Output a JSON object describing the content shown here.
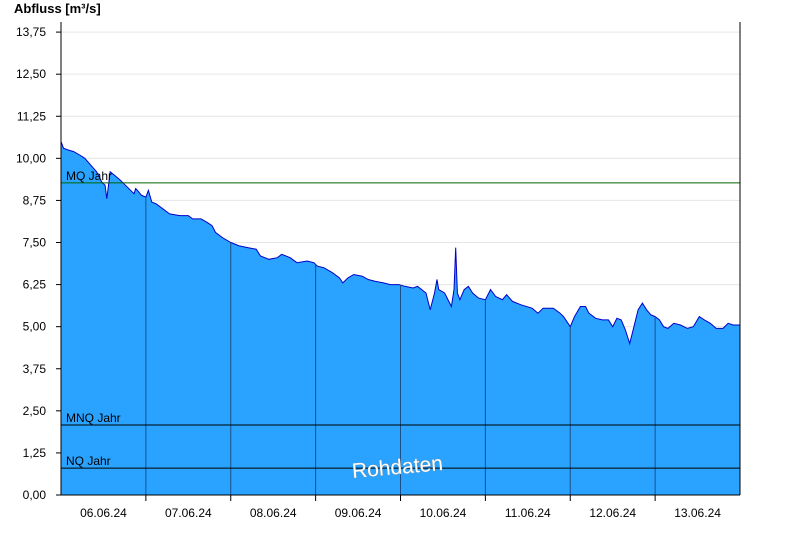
{
  "chart_data": {
    "type": "area",
    "ylabel": "Abfluss [m³/s]",
    "ylim": [
      0,
      14.05
    ],
    "xlim": [
      0,
      8
    ],
    "yticks": [
      {
        "value": 0,
        "label": "0,00"
      },
      {
        "value": 1.25,
        "label": "1,25"
      },
      {
        "value": 2.5,
        "label": "2,50"
      },
      {
        "value": 3.75,
        "label": "3,75"
      },
      {
        "value": 5.0,
        "label": "5,00"
      },
      {
        "value": 6.25,
        "label": "6,25"
      },
      {
        "value": 7.5,
        "label": "7,50"
      },
      {
        "value": 8.75,
        "label": "8,75"
      },
      {
        "value": 10.0,
        "label": "10,00"
      },
      {
        "value": 11.25,
        "label": "11,25"
      },
      {
        "value": 12.5,
        "label": "12,50"
      },
      {
        "value": 13.75,
        "label": "13,75"
      }
    ],
    "day_boundaries": [
      1,
      2,
      3,
      4,
      5,
      6,
      7
    ],
    "xticks": [
      {
        "x": 0.5,
        "label": "06.06.24"
      },
      {
        "x": 1.5,
        "label": "07.06.24"
      },
      {
        "x": 2.5,
        "label": "08.06.24"
      },
      {
        "x": 3.5,
        "label": "09.06.24"
      },
      {
        "x": 4.5,
        "label": "10.06.24"
      },
      {
        "x": 5.5,
        "label": "11.06.24"
      },
      {
        "x": 6.5,
        "label": "12.06.24"
      },
      {
        "x": 7.5,
        "label": "13.06.24"
      }
    ],
    "reference_lines": [
      {
        "name": "MQ Jahr",
        "value": 9.27,
        "color": "#006400"
      },
      {
        "name": "MNQ Jahr",
        "value": 2.08,
        "color": "#000000"
      },
      {
        "name": "NQ Jahr",
        "value": 0.8,
        "color": "#000000"
      }
    ],
    "series": [
      {
        "color_fill": "#29a3ff",
        "color_line": "#0000c8",
        "points": [
          [
            0.0,
            10.5
          ],
          [
            0.03,
            10.3
          ],
          [
            0.08,
            10.25
          ],
          [
            0.15,
            10.2
          ],
          [
            0.22,
            10.1
          ],
          [
            0.28,
            10.0
          ],
          [
            0.35,
            9.8
          ],
          [
            0.42,
            9.6
          ],
          [
            0.48,
            9.3
          ],
          [
            0.52,
            9.2
          ],
          [
            0.54,
            8.8
          ],
          [
            0.56,
            9.2
          ],
          [
            0.58,
            9.6
          ],
          [
            0.63,
            9.5
          ],
          [
            0.7,
            9.35
          ],
          [
            0.76,
            9.2
          ],
          [
            0.82,
            9.05
          ],
          [
            0.86,
            8.95
          ],
          [
            0.88,
            9.1
          ],
          [
            0.9,
            9.05
          ],
          [
            0.95,
            8.9
          ],
          [
            1.0,
            8.85
          ],
          [
            1.03,
            9.05
          ],
          [
            1.07,
            8.7
          ],
          [
            1.12,
            8.65
          ],
          [
            1.2,
            8.5
          ],
          [
            1.28,
            8.35
          ],
          [
            1.4,
            8.3
          ],
          [
            1.5,
            8.3
          ],
          [
            1.55,
            8.2
          ],
          [
            1.65,
            8.2
          ],
          [
            1.72,
            8.1
          ],
          [
            1.78,
            8.0
          ],
          [
            1.82,
            7.8
          ],
          [
            1.9,
            7.65
          ],
          [
            2.0,
            7.5
          ],
          [
            2.1,
            7.4
          ],
          [
            2.2,
            7.35
          ],
          [
            2.3,
            7.3
          ],
          [
            2.35,
            7.1
          ],
          [
            2.45,
            7.0
          ],
          [
            2.55,
            7.05
          ],
          [
            2.6,
            7.15
          ],
          [
            2.7,
            7.05
          ],
          [
            2.78,
            6.9
          ],
          [
            2.9,
            6.95
          ],
          [
            2.98,
            6.9
          ],
          [
            3.02,
            6.8
          ],
          [
            3.1,
            6.75
          ],
          [
            3.2,
            6.6
          ],
          [
            3.28,
            6.45
          ],
          [
            3.32,
            6.3
          ],
          [
            3.38,
            6.45
          ],
          [
            3.45,
            6.55
          ],
          [
            3.55,
            6.5
          ],
          [
            3.62,
            6.4
          ],
          [
            3.7,
            6.35
          ],
          [
            3.8,
            6.3
          ],
          [
            3.88,
            6.25
          ],
          [
            3.98,
            6.25
          ],
          [
            4.05,
            6.2
          ],
          [
            4.15,
            6.15
          ],
          [
            4.2,
            6.2
          ],
          [
            4.3,
            6.0
          ],
          [
            4.35,
            5.5
          ],
          [
            4.4,
            6.0
          ],
          [
            4.43,
            6.4
          ],
          [
            4.45,
            6.1
          ],
          [
            4.52,
            6.0
          ],
          [
            4.6,
            5.6
          ],
          [
            4.63,
            6.1
          ],
          [
            4.65,
            7.35
          ],
          [
            4.67,
            6.0
          ],
          [
            4.7,
            5.8
          ],
          [
            4.75,
            6.1
          ],
          [
            4.8,
            6.2
          ],
          [
            4.85,
            6.0
          ],
          [
            4.92,
            5.85
          ],
          [
            5.0,
            5.8
          ],
          [
            5.06,
            6.1
          ],
          [
            5.12,
            5.9
          ],
          [
            5.2,
            5.8
          ],
          [
            5.25,
            5.95
          ],
          [
            5.32,
            5.75
          ],
          [
            5.42,
            5.65
          ],
          [
            5.55,
            5.55
          ],
          [
            5.62,
            5.4
          ],
          [
            5.68,
            5.55
          ],
          [
            5.8,
            5.55
          ],
          [
            5.88,
            5.4
          ],
          [
            5.92,
            5.3
          ],
          [
            6.0,
            5.0
          ],
          [
            6.05,
            5.3
          ],
          [
            6.12,
            5.6
          ],
          [
            6.18,
            5.6
          ],
          [
            6.22,
            5.4
          ],
          [
            6.3,
            5.25
          ],
          [
            6.38,
            5.2
          ],
          [
            6.45,
            5.2
          ],
          [
            6.5,
            5.0
          ],
          [
            6.55,
            5.25
          ],
          [
            6.6,
            5.2
          ],
          [
            6.65,
            4.9
          ],
          [
            6.7,
            4.5
          ],
          [
            6.75,
            5.0
          ],
          [
            6.8,
            5.5
          ],
          [
            6.85,
            5.7
          ],
          [
            6.9,
            5.5
          ],
          [
            6.95,
            5.35
          ],
          [
            7.0,
            5.3
          ],
          [
            7.05,
            5.2
          ],
          [
            7.1,
            5.0
          ],
          [
            7.15,
            4.95
          ],
          [
            7.22,
            5.1
          ],
          [
            7.3,
            5.05
          ],
          [
            7.38,
            4.95
          ],
          [
            7.45,
            5.0
          ],
          [
            7.52,
            5.3
          ],
          [
            7.58,
            5.2
          ],
          [
            7.65,
            5.1
          ],
          [
            7.72,
            4.95
          ],
          [
            7.8,
            4.95
          ],
          [
            7.86,
            5.1
          ],
          [
            7.92,
            5.05
          ],
          [
            8.0,
            5.05
          ]
        ]
      }
    ],
    "watermark": "Rohdaten",
    "grid": true
  }
}
